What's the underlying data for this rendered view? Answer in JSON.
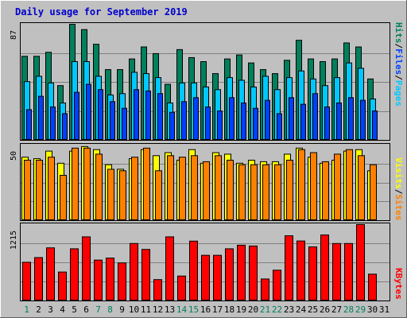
{
  "title": "Daily usage for September 2019",
  "colors": {
    "background": "#c0c0c0",
    "hits": "#00805c",
    "files": "#00c8ff",
    "pages": "#0040ff",
    "visits": "#ffff00",
    "sites": "#ff8000",
    "kbytes": "#ff0000",
    "weekend_day_label": "#00805c",
    "weekday_label": "#000000"
  },
  "panels": {
    "hits": {
      "ymax_label": "87",
      "labels": [
        "Pages",
        "Files",
        "Hits"
      ]
    },
    "visits": {
      "ymax_label": "50",
      "labels": [
        "Sites",
        "Visits"
      ]
    },
    "kbytes": {
      "ymax_label": "1215",
      "labels": [
        "KBytes"
      ]
    }
  },
  "chart_data": {
    "type": "bar",
    "title": "Daily usage for September 2019",
    "categories": [
      "1",
      "2",
      "3",
      "4",
      "5",
      "6",
      "7",
      "8",
      "9",
      "10",
      "11",
      "12",
      "13",
      "14",
      "15",
      "16",
      "17",
      "18",
      "19",
      "20",
      "21",
      "22",
      "23",
      "24",
      "25",
      "26",
      "27",
      "28",
      "29",
      "30",
      "31"
    ],
    "weekend_days": [
      "1",
      "7",
      "8",
      "14",
      "15",
      "21",
      "22",
      "28",
      "29"
    ],
    "panels": [
      {
        "name": "hits_files_pages",
        "ymax": 87,
        "series": [
          {
            "name": "Hits",
            "values": [
              63,
              63,
              66,
              41,
              87,
              83,
              72,
              53,
              53,
              61,
              70,
              65,
              42,
              68,
              62,
              59,
              50,
              61,
              64,
              58,
              53,
              50,
              60,
              75,
              61,
              59,
              61,
              73,
              70,
              46,
              0
            ]
          },
          {
            "name": "Files",
            "values": [
              44,
              48,
              43,
              28,
              59,
              59,
              48,
              34,
              35,
              51,
              50,
              47,
              28,
              43,
              43,
              40,
              38,
              47,
              45,
              40,
              48,
              38,
              47,
              52,
              46,
              41,
              47,
              58,
              54,
              31,
              0
            ]
          },
          {
            "name": "Pages",
            "values": [
              23,
              33,
              25,
              20,
              36,
              42,
              38,
              29,
              24,
              38,
              37,
              35,
              21,
              29,
              32,
              25,
              22,
              32,
              28,
              24,
              30,
              20,
              32,
              27,
              35,
              25,
              28,
              32,
              30,
              22,
              0
            ]
          }
        ]
      },
      {
        "name": "visits_sites",
        "ymax": 50,
        "series": [
          {
            "name": "Visits",
            "values": [
              42,
              41,
              46,
              38,
              46,
              49,
              47,
              37,
              34,
              41,
              47,
              43,
              45,
              40,
              47,
              38,
              45,
              44,
              38,
              40,
              39,
              39,
              44,
              48,
              42,
              38,
              40,
              46,
              47,
              33,
              0
            ]
          },
          {
            "name": "Sites",
            "values": [
              40,
              40,
              42,
              30,
              48,
              48,
              44,
              34,
              33,
              42,
              48,
              33,
              43,
              42,
              43,
              39,
              43,
              40,
              37,
              37,
              37,
              37,
              40,
              47,
              45,
              39,
              44,
              47,
              43,
              37,
              0
            ]
          }
        ]
      },
      {
        "name": "kbytes",
        "ymax": 1215,
        "series": [
          {
            "name": "KBytes",
            "values": [
              615,
              690,
              845,
              460,
              830,
              1020,
              650,
              682,
              605,
              914,
              820,
              339,
              1020,
              396,
              952,
              726,
              726,
              830,
              887,
              874,
              349,
              489,
              1037,
              954,
              860,
              1050,
              914,
              914,
              1215,
              426,
              0
            ]
          }
        ]
      }
    ]
  }
}
